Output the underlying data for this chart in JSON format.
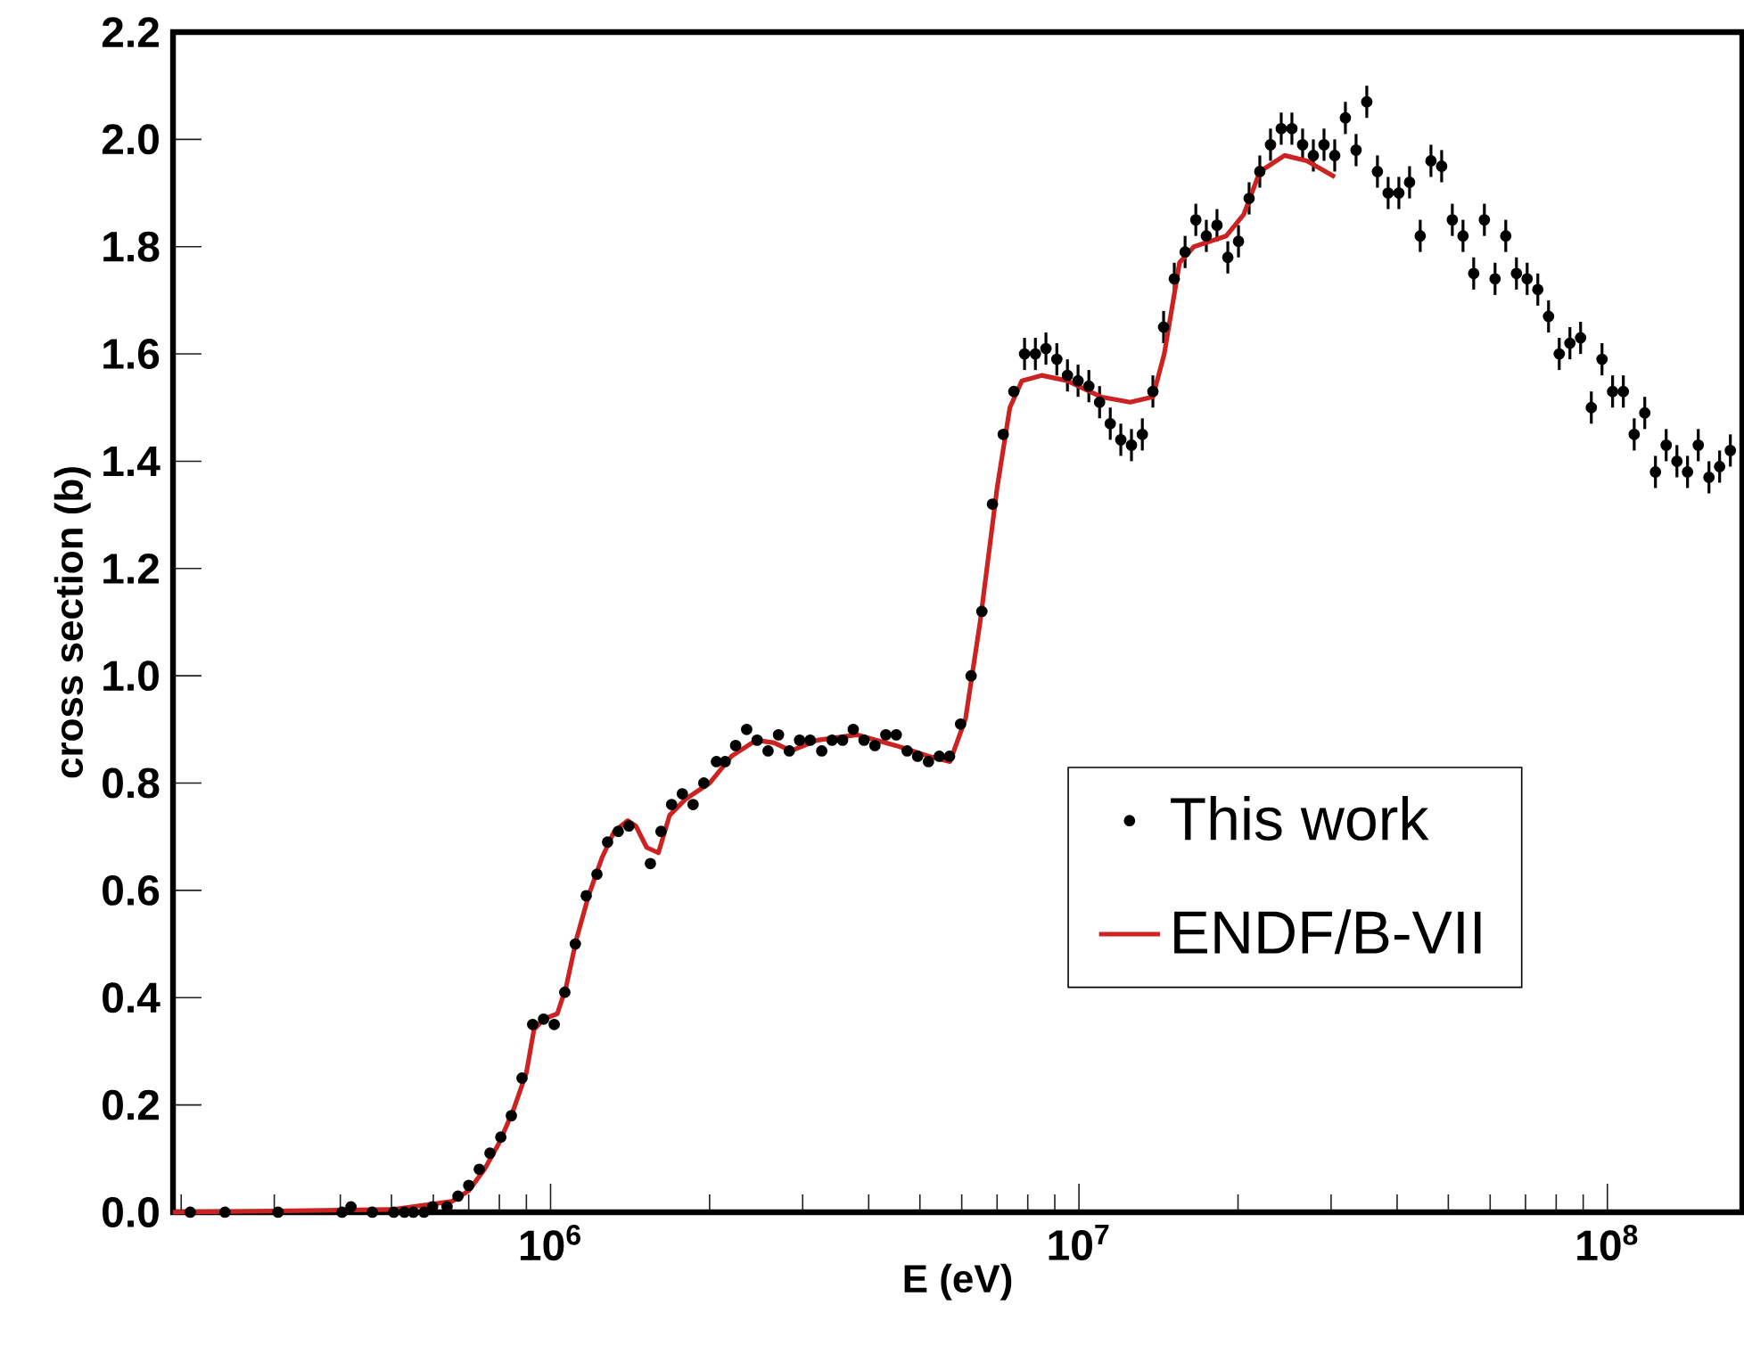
{
  "chart_data": {
    "type": "scatter",
    "xlabel": "E  (eV)",
    "ylabel": "cross section (b)",
    "log": "x",
    "grid": false,
    "legend": "right",
    "xlim": [
      193000,
      180000000
    ],
    "xticks": [
      {
        "value": 1000000,
        "label": "10$^{6}$"
      },
      {
        "value": 10000000,
        "label": "10$^{7}$"
      },
      {
        "value": 100000000,
        "label": "10$^{8}$"
      }
    ],
    "ylim": [
      0,
      2.2
    ],
    "yticks": [
      {
        "value": 0,
        "label": "0.0"
      },
      {
        "value": 0.2,
        "label": "0.2"
      },
      {
        "value": 0.4,
        "label": "0.4"
      },
      {
        "value": 0.6,
        "label": "0.6"
      },
      {
        "value": 0.8,
        "label": "0.8"
      },
      {
        "value": 1.0,
        "label": "1.0"
      },
      {
        "value": 1.2,
        "label": "1.2"
      },
      {
        "value": 1.4,
        "label": "1.4"
      },
      {
        "value": 1.6,
        "label": "1.6"
      },
      {
        "value": 1.8,
        "label": "1.8"
      },
      {
        "value": 2.0,
        "label": "2.0"
      },
      {
        "value": 2.2,
        "label": "2.2"
      }
    ],
    "series": [
      {
        "name": "This work",
        "marker": "circle",
        "color": "#000000",
        "x": [
          208000,
          242000,
          305000,
          403000,
          419000,
          460000,
          505000,
          529000,
          550000,
          576000,
          598000,
          637000,
          668000,
          700000,
          733000,
          768000,
          805000,
          843000,
          883000,
          925000,
          970000,
          1016000,
          1064000,
          1114000,
          1168000,
          1224000,
          1282000,
          1343000,
          1407000,
          1545000,
          1618000,
          1695000,
          1776000,
          1861000,
          1950000,
          2060000,
          2140000,
          2240000,
          2350000,
          2460000,
          2580000,
          2700000,
          2830000,
          2960000,
          3100000,
          3260000,
          3410000,
          3570000,
          3740000,
          3920000,
          4110000,
          4310000,
          4510000,
          4730000,
          4950000,
          5190000,
          5440000,
          5690000,
          5970000,
          6250000,
          6550000,
          6860000,
          7190000,
          7530000,
          7890000,
          8270000,
          8660000,
          9080000,
          9510000,
          9960000,
          10440000,
          10940000,
          11460000,
          12000000,
          12570000,
          13180000,
          13800000,
          14460000,
          15150000,
          15880000,
          16640000,
          17420000,
          18250000,
          19130000,
          20040000,
          20990000,
          21990000,
          23040000,
          24140000,
          25290000,
          26500000,
          27770000,
          29090000,
          30480000,
          31930000,
          33450000,
          35050000,
          36720000,
          38470000,
          40310000,
          42230000,
          44240000,
          46360000,
          48570000,
          50880000,
          53310000,
          55850000,
          58510000,
          61300000,
          64230000,
          67290000,
          70500000,
          73860000,
          77390000,
          81080000,
          84940000,
          88990000,
          93240000,
          97690000,
          102300000,
          107200000,
          112400000,
          117700000,
          123300000,
          129200000,
          135400000,
          141800000,
          148600000,
          155700000,
          163100000,
          170900000
        ],
        "values": [
          0.0,
          0.0,
          0.0,
          0.0,
          0.01,
          0.0,
          0.0,
          0.0,
          0.0,
          0.0,
          0.01,
          0.01,
          0.03,
          0.05,
          0.08,
          0.11,
          0.14,
          0.18,
          0.25,
          0.35,
          0.36,
          0.35,
          0.41,
          0.5,
          0.59,
          0.63,
          0.69,
          0.71,
          0.72,
          0.65,
          0.71,
          0.76,
          0.78,
          0.76,
          0.8,
          0.84,
          0.84,
          0.87,
          0.9,
          0.88,
          0.86,
          0.89,
          0.86,
          0.88,
          0.88,
          0.86,
          0.88,
          0.88,
          0.9,
          0.88,
          0.87,
          0.89,
          0.89,
          0.86,
          0.85,
          0.84,
          0.85,
          0.85,
          0.91,
          1.0,
          1.12,
          1.32,
          1.45,
          1.53,
          1.6,
          1.6,
          1.61,
          1.59,
          1.56,
          1.55,
          1.54,
          1.51,
          1.47,
          1.44,
          1.43,
          1.45,
          1.53,
          1.65,
          1.74,
          1.79,
          1.85,
          1.82,
          1.84,
          1.78,
          1.81,
          1.89,
          1.94,
          1.99,
          2.02,
          2.02,
          1.99,
          1.97,
          1.99,
          1.97,
          2.04,
          1.98,
          2.07,
          1.94,
          1.9,
          1.9,
          1.92,
          1.82,
          1.96,
          1.95,
          1.85,
          1.82,
          1.75,
          1.85,
          1.74,
          1.82,
          1.75,
          1.74,
          1.72,
          1.67,
          1.6,
          1.62,
          1.63,
          1.5,
          1.59,
          1.53,
          1.53,
          1.45,
          1.49,
          1.38,
          1.43,
          1.4,
          1.38,
          1.43,
          1.37,
          1.39,
          1.42
        ],
        "errors": [
          null,
          null,
          null,
          null,
          null,
          null,
          null,
          null,
          null,
          null,
          null,
          null,
          null,
          null,
          null,
          null,
          null,
          null,
          null,
          null,
          null,
          null,
          null,
          null,
          null,
          null,
          null,
          null,
          null,
          null,
          null,
          null,
          null,
          null,
          null,
          null,
          null,
          null,
          null,
          null,
          null,
          null,
          null,
          null,
          null,
          null,
          null,
          null,
          null,
          null,
          null,
          null,
          null,
          null,
          null,
          null,
          null,
          null,
          null,
          null,
          null,
          null,
          null,
          null,
          0.03,
          0.03,
          0.03,
          0.03,
          0.03,
          0.03,
          0.03,
          0.03,
          0.03,
          0.03,
          0.03,
          0.03,
          0.03,
          0.03,
          0.03,
          0.03,
          0.03,
          0.03,
          0.03,
          0.03,
          0.03,
          0.03,
          0.03,
          0.03,
          0.03,
          0.03,
          0.03,
          0.03,
          0.03,
          0.03,
          0.03,
          0.03,
          0.03,
          0.03,
          0.03,
          0.03,
          0.03,
          0.03,
          0.03,
          0.03,
          0.03,
          0.03,
          0.03,
          0.03,
          0.03,
          0.03,
          0.03,
          0.03,
          0.03,
          0.03,
          0.03,
          0.03,
          0.03,
          0.03,
          0.03,
          0.03,
          0.03,
          0.03,
          0.03,
          0.03,
          0.03,
          0.03,
          0.03,
          0.03,
          0.03,
          0.03,
          0.03
        ]
      },
      {
        "name": "ENDF/B-VII",
        "type": "line",
        "marker": "none",
        "color": "#cc2222",
        "x": [
          193000,
          500000,
          650000,
          700000,
          750000,
          800000,
          850000,
          900000,
          930000,
          970000,
          1030000,
          1070000,
          1120000,
          1180000,
          1250000,
          1320000,
          1400000,
          1450000,
          1520000,
          1600000,
          1680000,
          1800000,
          2000000,
          2200000,
          2450000,
          2650000,
          2850000,
          3200000,
          3800000,
          4500000,
          5200000,
          5700000,
          6100000,
          6500000,
          7000000,
          7400000,
          7800000,
          8500000,
          9500000,
          11000000,
          12500000,
          13800000,
          14500000,
          15500000,
          16500000,
          19000000,
          20500000,
          22000000,
          24500000,
          27000000,
          30500000
        ],
        "values": [
          0.0,
          0.005,
          0.02,
          0.04,
          0.08,
          0.13,
          0.19,
          0.26,
          0.34,
          0.36,
          0.37,
          0.42,
          0.51,
          0.59,
          0.66,
          0.71,
          0.73,
          0.72,
          0.68,
          0.67,
          0.74,
          0.77,
          0.8,
          0.85,
          0.88,
          0.875,
          0.86,
          0.88,
          0.89,
          0.87,
          0.85,
          0.84,
          0.92,
          1.1,
          1.35,
          1.5,
          1.55,
          1.56,
          1.55,
          1.52,
          1.51,
          1.52,
          1.6,
          1.77,
          1.8,
          1.82,
          1.86,
          1.94,
          1.97,
          1.96,
          1.93
        ]
      }
    ]
  }
}
